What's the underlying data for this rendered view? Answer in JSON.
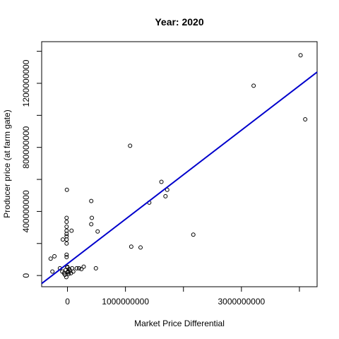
{
  "chart_data": {
    "type": "scatter",
    "title": "Year: 2020",
    "xlabel": "Market Price Differential",
    "ylabel": "Producer price (at farm gate)",
    "xlim": [
      -445000000,
      4305000000
    ],
    "ylim": [
      -70000000,
      1460000000
    ],
    "x_ticks": [
      {
        "value": 0,
        "label": "0"
      },
      {
        "value": 1000000000,
        "label": "1000000000"
      },
      {
        "value": 2000000000,
        "label": ""
      },
      {
        "value": 3000000000,
        "label": "3000000000"
      },
      {
        "value": 4000000000,
        "label": ""
      }
    ],
    "y_ticks": [
      {
        "value": 0,
        "label": "0"
      },
      {
        "value": 200000000,
        "label": ""
      },
      {
        "value": 400000000,
        "label": "400000000"
      },
      {
        "value": 600000000,
        "label": ""
      },
      {
        "value": 800000000,
        "label": "800000000"
      },
      {
        "value": 1000000000,
        "label": ""
      },
      {
        "value": 1200000000,
        "label": "1200000000"
      },
      {
        "value": 1400000000,
        "label": ""
      }
    ],
    "regression_line": {
      "color": "#0000cc",
      "x": [
        -445000000,
        4305000000
      ],
      "y": [
        -50000000,
        1270000000
      ]
    },
    "points": [
      {
        "x": 4020000000,
        "y": 1375000000
      },
      {
        "x": 4100000000,
        "y": 975000000
      },
      {
        "x": 3210000000,
        "y": 1185000000
      },
      {
        "x": 1080000000,
        "y": 810000000
      },
      {
        "x": 1620000000,
        "y": 585000000
      },
      {
        "x": 1720000000,
        "y": 535000000
      },
      {
        "x": 1690000000,
        "y": 495000000
      },
      {
        "x": 1410000000,
        "y": 455000000
      },
      {
        "x": 2170000000,
        "y": 255000000
      },
      {
        "x": 1100000000,
        "y": 180000000
      },
      {
        "x": 1260000000,
        "y": 175000000
      },
      {
        "x": 410000000,
        "y": 465000000
      },
      {
        "x": 420000000,
        "y": 360000000
      },
      {
        "x": 410000000,
        "y": 320000000
      },
      {
        "x": 520000000,
        "y": 275000000
      },
      {
        "x": 490000000,
        "y": 45000000
      },
      {
        "x": -10000000,
        "y": 535000000
      },
      {
        "x": -15000000,
        "y": 360000000
      },
      {
        "x": -15000000,
        "y": 335000000
      },
      {
        "x": -15000000,
        "y": 305000000
      },
      {
        "x": -15000000,
        "y": 280000000
      },
      {
        "x": -15000000,
        "y": 260000000
      },
      {
        "x": -15000000,
        "y": 245000000
      },
      {
        "x": -15000000,
        "y": 225000000
      },
      {
        "x": -15000000,
        "y": 200000000
      },
      {
        "x": -15000000,
        "y": 130000000
      },
      {
        "x": -15000000,
        "y": 115000000
      },
      {
        "x": -80000000,
        "y": 225000000
      },
      {
        "x": 70000000,
        "y": 280000000
      },
      {
        "x": -225000000,
        "y": 120000000
      },
      {
        "x": -290000000,
        "y": 105000000
      },
      {
        "x": -260000000,
        "y": 25000000
      },
      {
        "x": -130000000,
        "y": 45000000
      },
      {
        "x": -90000000,
        "y": 25000000
      },
      {
        "x": -60000000,
        "y": 15000000
      },
      {
        "x": -45000000,
        "y": 5000000
      },
      {
        "x": -30000000,
        "y": 35000000
      },
      {
        "x": -20000000,
        "y": -10000000
      },
      {
        "x": -5000000,
        "y": 55000000
      },
      {
        "x": 10000000,
        "y": 25000000
      },
      {
        "x": 20000000,
        "y": 10000000
      },
      {
        "x": 30000000,
        "y": 40000000
      },
      {
        "x": 45000000,
        "y": 30000000
      },
      {
        "x": 60000000,
        "y": 15000000
      },
      {
        "x": 80000000,
        "y": 45000000
      },
      {
        "x": 100000000,
        "y": 25000000
      },
      {
        "x": 160000000,
        "y": 45000000
      },
      {
        "x": 200000000,
        "y": 45000000
      },
      {
        "x": 240000000,
        "y": 40000000
      },
      {
        "x": 280000000,
        "y": 55000000
      },
      {
        "x": 10000000,
        "y": 20000000
      },
      {
        "x": 0,
        "y": 50000000
      }
    ]
  }
}
